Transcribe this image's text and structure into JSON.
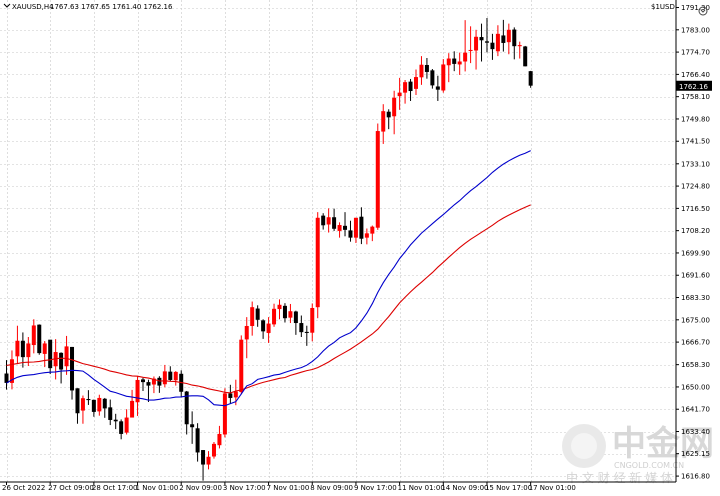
{
  "header": {
    "symbol": "XAUUSD,H4",
    "ohlc": "1767.63 1767.65 1761.40 1762.16",
    "right_label": "$1USD"
  },
  "watermark": {
    "chinese": "中金网",
    "site": "CNGOLD.COM.CN",
    "caption": "中 文 财 经 新 媒 体"
  },
  "colors": {
    "bull": "#ff0000",
    "bear": "#000000",
    "ma_fast": "#0000cc",
    "ma_slow": "#dd0000",
    "grid": "#c8c8c8",
    "price_tag_bg": "#000000",
    "price_tag_fg": "#ffffff"
  },
  "chart_data": {
    "type": "candlestick",
    "y_ticks": [
      1616.8,
      1625.15,
      1633.4,
      1641.7,
      1650.0,
      1658.3,
      1666.7,
      1675.0,
      1683.3,
      1691.6,
      1699.9,
      1708.2,
      1716.5,
      1724.8,
      1733.1,
      1741.5,
      1749.8,
      1758.1,
      1766.4,
      1774.7,
      1783.0,
      1791.3
    ],
    "ylim": [
      1614.6,
      1794.1
    ],
    "current_price": 1762.16,
    "x_tick_labels": [
      "26 Oct 2022",
      "27 Oct 09:00",
      "28 Oct 17:00",
      "1 Nov 01:00",
      "2 Nov 09:00",
      "3 Nov 17:00",
      "7 Nov 01:00",
      "8 Nov 09:00",
      "9 Nov 17:00",
      "11 Nov 01:00",
      "14 Nov 09:00",
      "15 Nov 17:00",
      "17 Nov 01:00"
    ],
    "x_tick_index": [
      0,
      8,
      16,
      24,
      32,
      40,
      48,
      56,
      64,
      72,
      80,
      88,
      96
    ],
    "candles": [
      [
        1655.0,
        1660.0,
        1649.0,
        1651.5
      ],
      [
        1651.5,
        1663.6,
        1649.1,
        1660.3
      ],
      [
        1661.4,
        1672.8,
        1658.5,
        1667.2
      ],
      [
        1667.2,
        1670.3,
        1657.2,
        1661.1
      ],
      [
        1661.1,
        1668.6,
        1657.8,
        1666.2
      ],
      [
        1665.6,
        1675.2,
        1662.5,
        1672.9
      ],
      [
        1673.2,
        1673.3,
        1662.0,
        1662.6
      ],
      [
        1662.3,
        1667.1,
        1657.4,
        1666.2
      ],
      [
        1667.6,
        1667.2,
        1654.8,
        1657.0
      ],
      [
        1657.7,
        1667.8,
        1652.8,
        1663.0
      ],
      [
        1662.7,
        1662.9,
        1651.3,
        1656.5
      ],
      [
        1657.7,
        1669.0,
        1654.5,
        1665.1
      ],
      [
        1664.9,
        1664.9,
        1645.3,
        1648.7
      ],
      [
        1649.5,
        1649.5,
        1636.3,
        1640.2
      ],
      [
        1641.2,
        1646.8,
        1636.3,
        1645.8
      ],
      [
        1645.5,
        1648.8,
        1643.3,
        1645.1
      ],
      [
        1645.2,
        1645.3,
        1638.9,
        1640.7
      ],
      [
        1640.9,
        1647.1,
        1639.3,
        1645.9
      ],
      [
        1645.6,
        1645.9,
        1638.5,
        1642.0
      ],
      [
        1642.4,
        1645.3,
        1635.8,
        1637.7
      ],
      [
        1637.8,
        1640.0,
        1634.3,
        1637.2
      ],
      [
        1637.2,
        1637.9,
        1630.5,
        1632.5
      ],
      [
        1633.0,
        1641.7,
        1632.3,
        1638.6
      ],
      [
        1638.6,
        1648.9,
        1639.4,
        1644.8
      ],
      [
        1644.3,
        1653.9,
        1639.2,
        1652.6
      ],
      [
        1652.8,
        1653.4,
        1648.5,
        1651.8
      ],
      [
        1651.8,
        1652.7,
        1644.4,
        1650.5
      ],
      [
        1650.9,
        1653.9,
        1647.7,
        1653.1
      ],
      [
        1653.4,
        1654.0,
        1647.8,
        1650.5
      ],
      [
        1651.0,
        1658.2,
        1649.9,
        1655.8
      ],
      [
        1655.7,
        1657.7,
        1652.1,
        1652.6
      ],
      [
        1652.5,
        1655.9,
        1650.5,
        1655.6
      ],
      [
        1654.9,
        1656.2,
        1646.2,
        1648.2
      ],
      [
        1648.3,
        1648.5,
        1632.3,
        1636.1
      ],
      [
        1636.1,
        1640.9,
        1628.8,
        1635.0
      ],
      [
        1634.6,
        1636.5,
        1622.2,
        1625.6
      ],
      [
        1626.5,
        1626.5,
        1615.1,
        1621.1
      ],
      [
        1621.1,
        1626.1,
        1619.3,
        1624.0
      ],
      [
        1624.1,
        1629.5,
        1623.3,
        1628.8
      ],
      [
        1628.3,
        1635.5,
        1627.1,
        1632.5
      ],
      [
        1632.3,
        1649.5,
        1631.2,
        1647.6
      ],
      [
        1647.6,
        1650.8,
        1643.8,
        1645.9
      ],
      [
        1646.1,
        1652.7,
        1643.2,
        1648.3
      ],
      [
        1648.1,
        1669.2,
        1647.3,
        1667.6
      ],
      [
        1667.7,
        1676.0,
        1660.7,
        1672.7
      ],
      [
        1672.7,
        1681.8,
        1669.1,
        1679.7
      ],
      [
        1679.2,
        1680.4,
        1672.4,
        1675.0
      ],
      [
        1674.8,
        1675.2,
        1667.9,
        1670.7
      ],
      [
        1670.1,
        1676.0,
        1666.4,
        1673.6
      ],
      [
        1673.3,
        1681.0,
        1672.4,
        1679.1
      ],
      [
        1679.0,
        1682.6,
        1675.2,
        1680.6
      ],
      [
        1680.2,
        1681.2,
        1674.0,
        1675.6
      ],
      [
        1675.8,
        1680.9,
        1673.8,
        1678.2
      ],
      [
        1678.1,
        1678.4,
        1669.4,
        1673.8
      ],
      [
        1673.8,
        1676.6,
        1668.6,
        1670.4
      ],
      [
        1670.5,
        1672.8,
        1665.3,
        1670.1
      ],
      [
        1670.2,
        1681.1,
        1667.0,
        1679.4
      ],
      [
        1679.7,
        1715.1,
        1675.6,
        1713.0
      ],
      [
        1713.8,
        1714.7,
        1708.6,
        1710.2
      ],
      [
        1710.5,
        1716.5,
        1707.5,
        1713.2
      ],
      [
        1713.2,
        1716.4,
        1708.1,
        1708.9
      ],
      [
        1708.1,
        1711.3,
        1705.6,
        1710.3
      ],
      [
        1710.0,
        1715.1,
        1706.1,
        1708.5
      ],
      [
        1708.3,
        1711.9,
        1704.1,
        1705.6
      ],
      [
        1705.6,
        1713.0,
        1703.6,
        1713.0
      ],
      [
        1713.4,
        1716.9,
        1703.2,
        1705.2
      ],
      [
        1705.6,
        1709.0,
        1703.1,
        1707.2
      ],
      [
        1707.1,
        1710.1,
        1704.3,
        1709.7
      ],
      [
        1709.3,
        1748.1,
        1708.5,
        1745.3
      ],
      [
        1745.1,
        1755.3,
        1740.5,
        1752.7
      ],
      [
        1752.5,
        1753.4,
        1746.0,
        1750.4
      ],
      [
        1750.8,
        1760.3,
        1744.1,
        1757.7
      ],
      [
        1758.3,
        1765.1,
        1753.2,
        1759.6
      ],
      [
        1759.6,
        1764.3,
        1755.5,
        1763.5
      ],
      [
        1763.7,
        1764.7,
        1756.5,
        1760.2
      ],
      [
        1761.0,
        1768.2,
        1758.7,
        1765.4
      ],
      [
        1765.3,
        1773.2,
        1762.5,
        1770.0
      ],
      [
        1769.9,
        1772.5,
        1764.8,
        1767.3
      ],
      [
        1767.9,
        1768.4,
        1761.1,
        1762.3
      ],
      [
        1761.9,
        1765.9,
        1756.5,
        1760.7
      ],
      [
        1760.4,
        1772.1,
        1759.6,
        1770.1
      ],
      [
        1769.8,
        1774.3,
        1763.5,
        1772.3
      ],
      [
        1772.3,
        1775.0,
        1767.6,
        1770.3
      ],
      [
        1770.1,
        1774.5,
        1766.2,
        1771.2
      ],
      [
        1771.2,
        1786.6,
        1767.5,
        1774.5
      ],
      [
        1775.4,
        1784.3,
        1770.6,
        1775.5
      ],
      [
        1775.3,
        1783.0,
        1768.2,
        1780.4
      ],
      [
        1780.3,
        1785.3,
        1771.2,
        1779.1
      ],
      [
        1778.7,
        1787.4,
        1774.6,
        1778.2
      ],
      [
        1778.2,
        1781.5,
        1771.8,
        1775.8
      ],
      [
        1775.0,
        1784.7,
        1773.2,
        1781.5
      ],
      [
        1780.9,
        1786.7,
        1774.9,
        1778.1
      ],
      [
        1778.4,
        1785.3,
        1773.9,
        1783.0
      ],
      [
        1783.1,
        1783.9,
        1772.0,
        1776.9
      ],
      [
        1776.9,
        1778.6,
        1772.3,
        1777.3
      ],
      [
        1776.8,
        1777.0,
        1769.4,
        1769.4
      ],
      [
        1767.6,
        1767.7,
        1761.4,
        1762.2
      ]
    ],
    "ma_fast": [
      1651.4,
      1652.7,
      1653.6,
      1654.2,
      1654.4,
      1654.6,
      1655.0,
      1655.3,
      1655.5,
      1655.6,
      1655.9,
      1656.0,
      1656.2,
      1656.1,
      1655.9,
      1654.5,
      1652.8,
      1651.4,
      1649.9,
      1648.4,
      1647.9,
      1647.2,
      1646.5,
      1646.2,
      1645.9,
      1645.6,
      1645.1,
      1645.1,
      1645.4,
      1645.8,
      1645.9,
      1646.2,
      1646.3,
      1646.6,
      1646.7,
      1646.7,
      1646.5,
      1645.2,
      1643.4,
      1643.2,
      1643.0,
      1643.8,
      1644.5,
      1647.4,
      1650.4,
      1651.2,
      1652.8,
      1653.3,
      1653.8,
      1654.4,
      1654.7,
      1655.4,
      1656.1,
      1656.7,
      1657.2,
      1658.1,
      1659.5,
      1661.2,
      1663.4,
      1665.2,
      1666.6,
      1668.3,
      1669.3,
      1670.2,
      1672.0,
      1674.6,
      1677.5,
      1681.0,
      1685.2,
      1688.8,
      1691.9,
      1694.7,
      1697.8,
      1700.3,
      1702.9,
      1705.1,
      1707.3,
      1709.0,
      1710.8,
      1712.5,
      1714.2,
      1716.0,
      1717.8,
      1719.4,
      1721.3,
      1723.1,
      1724.6,
      1726.3,
      1728.0,
      1729.9,
      1731.5,
      1733.0,
      1734.2,
      1735.3,
      1736.3,
      1737.0,
      1738.0
    ],
    "ma_slow": [
      1658.0,
      1658.4,
      1658.7,
      1659.1,
      1659.2,
      1659.3,
      1659.5,
      1659.9,
      1660.1,
      1660.5,
      1660.7,
      1660.6,
      1660.1,
      1659.4,
      1658.7,
      1658.2,
      1657.7,
      1657.2,
      1656.6,
      1655.9,
      1655.5,
      1655.0,
      1654.5,
      1654.1,
      1654.0,
      1653.6,
      1653.3,
      1652.8,
      1652.2,
      1652.3,
      1652.1,
      1652.0,
      1651.6,
      1651.3,
      1650.7,
      1650.4,
      1649.9,
      1649.3,
      1648.9,
      1648.5,
      1648.0,
      1647.8,
      1648.5,
      1648.9,
      1649.6,
      1650.4,
      1651.1,
      1651.7,
      1652.2,
      1652.7,
      1653.2,
      1653.5,
      1654.3,
      1654.9,
      1655.5,
      1656.1,
      1656.5,
      1657.2,
      1658.2,
      1659.3,
      1660.6,
      1661.8,
      1662.9,
      1664.1,
      1665.4,
      1666.8,
      1668.3,
      1669.7,
      1671.5,
      1673.9,
      1676.2,
      1678.8,
      1681.3,
      1683.4,
      1685.4,
      1687.3,
      1689.0,
      1690.8,
      1692.6,
      1694.6,
      1696.4,
      1698.3,
      1700.1,
      1701.9,
      1703.5,
      1705.0,
      1706.3,
      1707.6,
      1708.9,
      1710.2,
      1711.7,
      1712.9,
      1714.0,
      1715.0,
      1716.0,
      1716.9,
      1717.8
    ],
    "xlabel": "",
    "ylabel": ""
  }
}
